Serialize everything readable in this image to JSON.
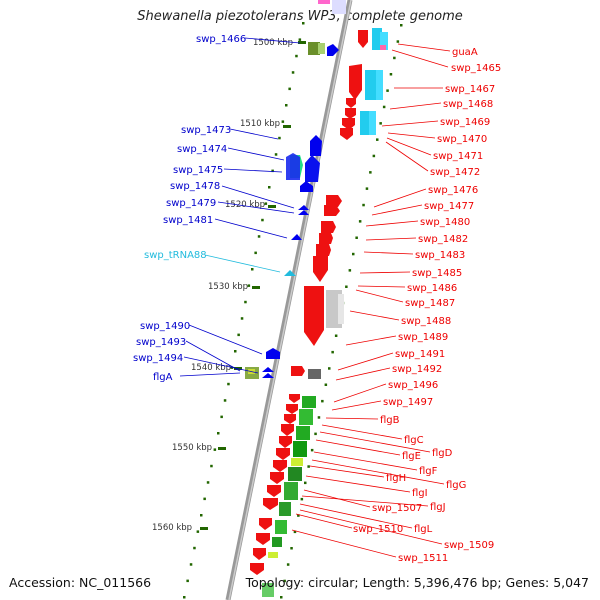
{
  "title": "Shewanella piezotolerans WP3, complete genome",
  "footer": {
    "accession": "Accession: NC_011566",
    "topology": "Topology: circular; Length: 5,396,476 bp; Genes: 5,047"
  },
  "colors": {
    "forward_label": "#0000cc",
    "reverse_label": "#ee0000",
    "trna_label": "#22bbdd",
    "backbone": "#999999",
    "tick": "#226600"
  },
  "kbp_marks": [
    "1500 kbp",
    "1510 kbp",
    "1520 kbp",
    "1530 kbp",
    "1540 kbp",
    "1550 kbp",
    "1560 kbp"
  ],
  "left_labels": [
    {
      "name": "swp_1466",
      "color": "#0000cc"
    },
    {
      "name": "swp_1473",
      "color": "#0000cc"
    },
    {
      "name": "swp_1474",
      "color": "#0000cc"
    },
    {
      "name": "swp_1475",
      "color": "#0000cc"
    },
    {
      "name": "swp_1478",
      "color": "#0000cc"
    },
    {
      "name": "swp_1479",
      "color": "#0000cc"
    },
    {
      "name": "swp_1481",
      "color": "#0000cc"
    },
    {
      "name": "swp_tRNA88",
      "color": "#22bbdd"
    },
    {
      "name": "swp_1490",
      "color": "#0000cc"
    },
    {
      "name": "swp_1493",
      "color": "#0000cc"
    },
    {
      "name": "swp_1494",
      "color": "#0000cc"
    },
    {
      "name": "flgA",
      "color": "#0000cc"
    }
  ],
  "right_labels": [
    "guaA",
    "swp_1465",
    "swp_1467",
    "swp_1468",
    "swp_1469",
    "swp_1470",
    "swp_1471",
    "swp_1472",
    "swp_1476",
    "swp_1477",
    "swp_1480",
    "swp_1482",
    "swp_1483",
    "swp_1485",
    "swp_1486",
    "swp_1487",
    "swp_1488",
    "swp_1489",
    "swp_1491",
    "swp_1492",
    "swp_1496",
    "swp_1497",
    "flgB",
    "flgC",
    "flgD",
    "flgE",
    "flgF",
    "flgG",
    "flgH",
    "flgI",
    "swp_1507",
    "flgJ",
    "flgL",
    "swp_1510",
    "swp_1509",
    "swp_1511"
  ]
}
